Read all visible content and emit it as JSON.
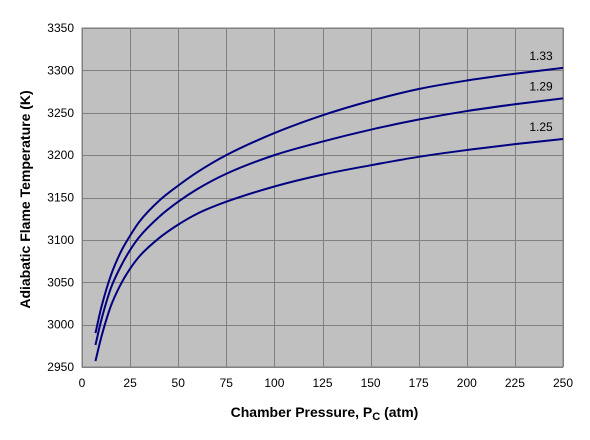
{
  "chart_data": {
    "type": "line",
    "title": "",
    "xlabel": "Chamber Pressure, P",
    "xlabel_sub": "C",
    "xlabel_unit": " (atm)",
    "ylabel": "Adiabatic Flame Temperature (K)",
    "xlim": [
      0,
      250
    ],
    "ylim": [
      2950,
      3350
    ],
    "x_ticks": [
      "0",
      "25",
      "50",
      "75",
      "100",
      "125",
      "150",
      "175",
      "200",
      "225",
      "250"
    ],
    "y_ticks": [
      "3350",
      "3300",
      "3250",
      "3200",
      "3150",
      "3100",
      "3050",
      "3000",
      "2950"
    ],
    "x_tick_values": [
      0,
      25,
      50,
      75,
      100,
      125,
      150,
      175,
      200,
      225,
      250
    ],
    "y_tick_values": [
      3350,
      3300,
      3250,
      3200,
      3150,
      3100,
      3050,
      3000,
      2950
    ],
    "grid": true,
    "legend": "none",
    "x": [
      7,
      10,
      15,
      20,
      25,
      30,
      40,
      50,
      60,
      75,
      100,
      125,
      150,
      175,
      200,
      225,
      250
    ],
    "series": [
      {
        "name": "1.33",
        "values": [
          2990,
          3020,
          3058,
          3085,
          3105,
          3122,
          3146,
          3164,
          3180,
          3200,
          3226,
          3247,
          3264,
          3278,
          3288,
          3296,
          3303
        ]
      },
      {
        "name": "1.29",
        "values": [
          2976,
          3005,
          3043,
          3068,
          3088,
          3104,
          3127,
          3145,
          3160,
          3178,
          3200,
          3216,
          3230,
          3242,
          3252,
          3260,
          3267
        ]
      },
      {
        "name": "1.25",
        "values": [
          2957,
          2985,
          3022,
          3047,
          3066,
          3081,
          3102,
          3118,
          3131,
          3145,
          3163,
          3177,
          3188,
          3198,
          3206,
          3213,
          3219
        ]
      }
    ]
  },
  "colors": {
    "plot_background": "#c0c0c0",
    "gridline": "#808080",
    "series_line": "#000080"
  }
}
